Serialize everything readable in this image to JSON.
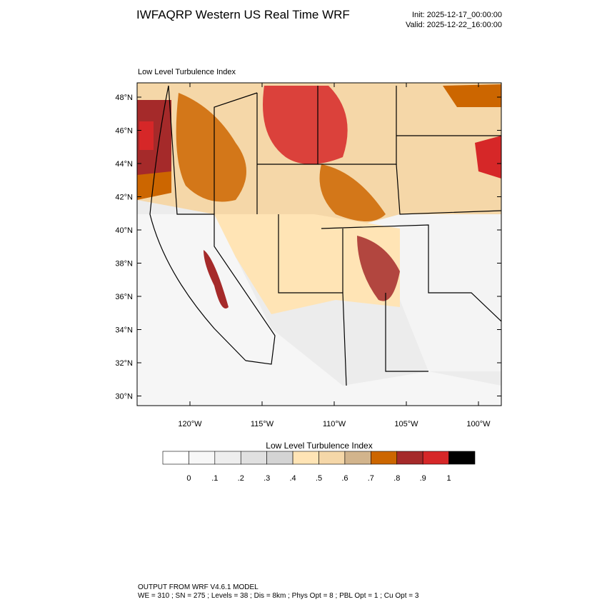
{
  "header": {
    "title": "IWFAQRP Western US Real Time WRF",
    "init": "Init: 2025-12-17_00:00:00",
    "valid": "Valid: 2025-12-22_16:00:00"
  },
  "panel": {
    "label": "Low Level Turbulence Index"
  },
  "map": {
    "lat_labels": [
      "48°N",
      "46°N",
      "44°N",
      "42°N",
      "40°N",
      "38°N",
      "36°N",
      "34°N",
      "32°N",
      "30°N"
    ],
    "lon_labels": [
      "120°W",
      "115°W",
      "110°W",
      "105°W",
      "100°W"
    ]
  },
  "colorbar": {
    "title": "Low Level Turbulence Index",
    "colors": [
      "#ffffff",
      "#f7f7f7",
      "#eeeeee",
      "#e0e0e0",
      "#d4d4d4",
      "#ffe4b5",
      "#f5d7a8",
      "#d2b48c",
      "#cc6600",
      "#a52a2a",
      "#d62728",
      "#000000"
    ],
    "labels": [
      "0",
      ".1",
      ".2",
      ".3",
      ".4",
      ".5",
      ".6",
      ".7",
      ".8",
      ".9",
      "1"
    ]
  },
  "footer": {
    "line1": "OUTPUT FROM WRF V4.6.1 MODEL",
    "line2": "WE = 310 ; SN = 275 ; Levels = 38 ; Dis = 8km ; Phys Opt = 8 ; PBL Opt = 1 ; Cu Opt = 3"
  }
}
